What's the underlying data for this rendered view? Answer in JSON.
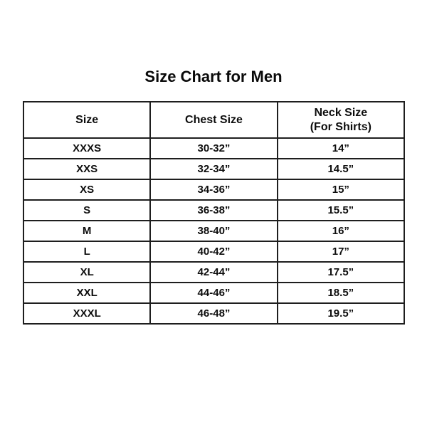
{
  "title": "Size Chart for Men",
  "table": {
    "headers": {
      "size": "Size",
      "chest": "Chest Size",
      "neck_line1": "Neck Size",
      "neck_line2": "(For Shirts)"
    },
    "rows": [
      {
        "size": "XXXS",
        "chest": "30-32”",
        "neck": "14”"
      },
      {
        "size": "XXS",
        "chest": "32-34”",
        "neck": "14.5”"
      },
      {
        "size": "XS",
        "chest": "34-36”",
        "neck": "15”"
      },
      {
        "size": "S",
        "chest": "36-38”",
        "neck": "15.5”"
      },
      {
        "size": "M",
        "chest": "38-40”",
        "neck": "16”"
      },
      {
        "size": "L",
        "chest": "40-42”",
        "neck": "17”"
      },
      {
        "size": "XL",
        "chest": "42-44”",
        "neck": "17.5”"
      },
      {
        "size": "XXL",
        "chest": "44-46”",
        "neck": "18.5”"
      },
      {
        "size": "XXXL",
        "chest": "46-48”",
        "neck": "19.5”"
      }
    ]
  },
  "chart_data": {
    "type": "table",
    "title": "Size Chart for Men",
    "columns": [
      "Size",
      "Chest Size",
      "Neck Size (For Shirts)"
    ],
    "rows": [
      [
        "XXXS",
        "30-32\"",
        "14\""
      ],
      [
        "XXS",
        "32-34\"",
        "14.5\""
      ],
      [
        "XS",
        "34-36\"",
        "15\""
      ],
      [
        "S",
        "36-38\"",
        "15.5\""
      ],
      [
        "M",
        "38-40\"",
        "16\""
      ],
      [
        "L",
        "40-42\"",
        "17\""
      ],
      [
        "XL",
        "42-44\"",
        "17.5\""
      ],
      [
        "XXL",
        "44-46\"",
        "18.5\""
      ],
      [
        "XXXL",
        "46-48\"",
        "19.5\""
      ]
    ]
  },
  "colors": {
    "background": "#ffffff",
    "text": "#0d0d0d",
    "border": "#1e1e1e"
  }
}
